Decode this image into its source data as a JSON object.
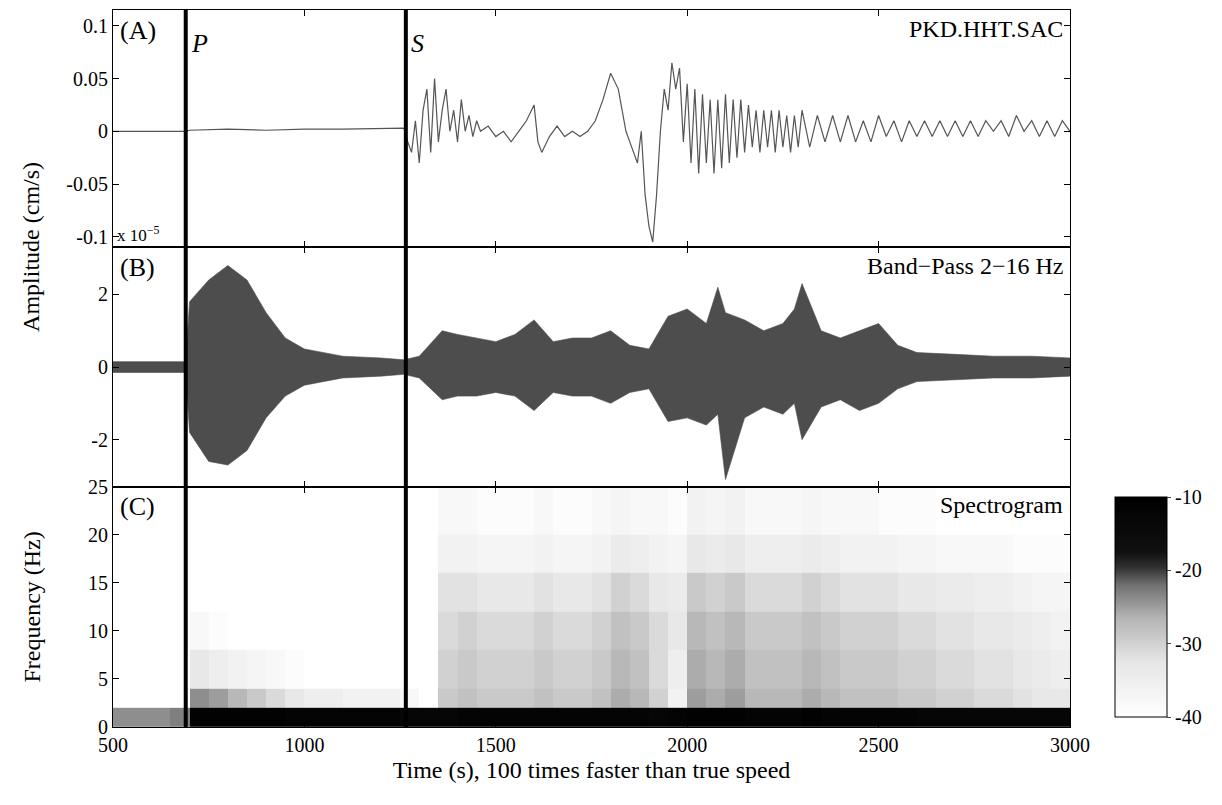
{
  "chart_data": [
    {
      "type": "line",
      "panel": "(A)",
      "title": "PKD.HHT.SAC",
      "ylabel": "Amplitude (cm/s)",
      "tick_labels": "y",
      "grid": false,
      "color": "#555555",
      "xlim": [
        500,
        3000
      ],
      "xticks": [
        500,
        1000,
        1500,
        2000,
        2500,
        3000
      ],
      "ylim": [
        -0.11,
        0.115
      ],
      "yticks": [
        -0.1,
        -0.05,
        0,
        0.05,
        0.1
      ],
      "picks": [
        {
          "label": "P",
          "time": 690
        },
        {
          "label": "S",
          "time": 1265
        }
      ],
      "x": [
        500,
        690,
        700,
        800,
        900,
        1000,
        1100,
        1200,
        1260,
        1270,
        1280,
        1290,
        1300,
        1310,
        1320,
        1330,
        1340,
        1350,
        1360,
        1370,
        1380,
        1390,
        1400,
        1410,
        1420,
        1430,
        1440,
        1450,
        1460,
        1480,
        1500,
        1520,
        1540,
        1560,
        1580,
        1600,
        1610,
        1620,
        1640,
        1660,
        1680,
        1700,
        1720,
        1740,
        1760,
        1780,
        1800,
        1820,
        1840,
        1850,
        1870,
        1880,
        1890,
        1900,
        1910,
        1920,
        1930,
        1940,
        1950,
        1960,
        1970,
        1980,
        1990,
        2000,
        2010,
        2020,
        2030,
        2040,
        2050,
        2060,
        2070,
        2080,
        2090,
        2100,
        2110,
        2120,
        2130,
        2140,
        2150,
        2160,
        2170,
        2180,
        2190,
        2200,
        2210,
        2220,
        2230,
        2240,
        2250,
        2260,
        2270,
        2280,
        2290,
        2300,
        2320,
        2340,
        2360,
        2380,
        2400,
        2420,
        2440,
        2460,
        2480,
        2500,
        2520,
        2540,
        2560,
        2580,
        2600,
        2620,
        2640,
        2660,
        2680,
        2700,
        2720,
        2740,
        2760,
        2780,
        2800,
        2820,
        2840,
        2860,
        2880,
        2900,
        2920,
        2940,
        2960,
        2980,
        3000
      ],
      "values": [
        0,
        0,
        0.001,
        0.002,
        0.001,
        0.002,
        0.002,
        0.003,
        0.003,
        -0.01,
        -0.02,
        0.01,
        -0.03,
        0.02,
        0.04,
        -0.02,
        0.05,
        -0.01,
        0.02,
        0.04,
        0.0,
        0.02,
        -0.01,
        0.03,
        0.0,
        0.015,
        -0.005,
        0.01,
        0.0,
        0.005,
        -0.005,
        0.0,
        -0.01,
        0.0,
        0.01,
        0.025,
        -0.01,
        -0.02,
        -0.005,
        0.005,
        -0.005,
        0.0,
        -0.005,
        0.0,
        0.01,
        0.03,
        0.055,
        0.04,
        0.0,
        -0.01,
        -0.03,
        0.0,
        -0.06,
        -0.09,
        -0.105,
        -0.06,
        0.0,
        0.04,
        0.02,
        0.065,
        0.04,
        0.06,
        -0.01,
        0.045,
        -0.03,
        0.04,
        -0.04,
        0.035,
        -0.03,
        0.03,
        -0.04,
        0.03,
        -0.035,
        0.035,
        -0.03,
        0.03,
        -0.025,
        0.03,
        -0.02,
        0.025,
        -0.015,
        0.02,
        -0.02,
        0.02,
        -0.015,
        0.02,
        -0.02,
        0.02,
        -0.015,
        0.015,
        -0.02,
        0.015,
        -0.015,
        0.02,
        -0.015,
        0.015,
        -0.01,
        0.015,
        -0.01,
        0.015,
        -0.01,
        0.01,
        -0.01,
        0.015,
        -0.005,
        0.01,
        -0.01,
        0.01,
        -0.005,
        0.01,
        -0.005,
        0.01,
        -0.005,
        0.01,
        -0.005,
        0.01,
        -0.005,
        0.01,
        0.0,
        0.01,
        -0.005,
        0.015,
        0.0,
        0.01,
        -0.005,
        0.01,
        -0.005,
        0.01,
        0.0
      ]
    },
    {
      "type": "area",
      "panel": "(B)",
      "title": "Band−Pass 2−16 Hz",
      "scale_text": "x 10",
      "scale_exponent": "−5",
      "tick_labels": "y",
      "grid": false,
      "color": "#4d4d4d",
      "xlim": [
        500,
        3000
      ],
      "xticks": [
        500,
        1000,
        1500,
        2000,
        2500,
        3000
      ],
      "ylim": [
        -3.3,
        3.3
      ],
      "yticks": [
        -2,
        0,
        2
      ],
      "envelope": {
        "x": [
          500,
          690,
          700,
          750,
          800,
          850,
          900,
          950,
          1000,
          1100,
          1200,
          1260,
          1300,
          1360,
          1400,
          1450,
          1500,
          1550,
          1600,
          1650,
          1700,
          1750,
          1800,
          1850,
          1900,
          1950,
          2000,
          2050,
          2080,
          2100,
          2150,
          2200,
          2250,
          2280,
          2300,
          2350,
          2400,
          2450,
          2500,
          2550,
          2600,
          2700,
          2800,
          2900,
          3000
        ],
        "upper": [
          0.15,
          0.15,
          1.8,
          2.4,
          2.8,
          2.4,
          1.5,
          0.8,
          0.5,
          0.3,
          0.25,
          0.2,
          0.3,
          1.0,
          0.9,
          0.8,
          0.7,
          0.9,
          1.3,
          0.7,
          0.8,
          0.8,
          1.0,
          0.6,
          0.5,
          1.4,
          1.6,
          1.2,
          2.2,
          1.5,
          1.3,
          1.0,
          1.2,
          1.6,
          2.3,
          1.0,
          0.8,
          1.0,
          1.2,
          0.6,
          0.4,
          0.35,
          0.3,
          0.3,
          0.25
        ],
        "lower": [
          -0.15,
          -0.15,
          -1.8,
          -2.6,
          -2.7,
          -2.3,
          -1.4,
          -0.8,
          -0.5,
          -0.3,
          -0.25,
          -0.2,
          -0.3,
          -0.9,
          -0.8,
          -0.8,
          -0.7,
          -0.8,
          -1.2,
          -0.7,
          -0.8,
          -0.8,
          -1.0,
          -0.7,
          -0.6,
          -1.5,
          -1.4,
          -1.6,
          -1.3,
          -3.1,
          -1.4,
          -1.1,
          -1.3,
          -1.0,
          -2.0,
          -1.1,
          -0.9,
          -1.2,
          -1.0,
          -0.6,
          -0.4,
          -0.35,
          -0.3,
          -0.3,
          -0.25
        ]
      }
    },
    {
      "type": "heatmap",
      "panel": "(C)",
      "title": "Spectrogram",
      "xlabel": "Time (s), 100 times faster than true speed",
      "ylabel": "Frequency (Hz)",
      "grid": false,
      "xlim": [
        500,
        3000
      ],
      "xticks": [
        500,
        1000,
        1500,
        2000,
        2500,
        3000
      ],
      "ylim": [
        0,
        25
      ],
      "yticks": [
        0,
        5,
        10,
        15,
        20,
        25
      ],
      "colorbar": {
        "zlim": [
          -40,
          -10
        ],
        "ticks": [
          -40,
          -30,
          -20,
          -10
        ]
      },
      "x": [
        500,
        550,
        600,
        650,
        700,
        750,
        800,
        850,
        900,
        950,
        1000,
        1050,
        1100,
        1150,
        1200,
        1250,
        1300,
        1350,
        1400,
        1450,
        1500,
        1550,
        1600,
        1650,
        1700,
        1750,
        1800,
        1850,
        1900,
        1950,
        2000,
        2050,
        2100,
        2150,
        2200,
        2250,
        2300,
        2350,
        2400,
        2450,
        2500,
        2550,
        2600,
        2650,
        2700,
        2750,
        2800,
        2850,
        2900,
        2950,
        3000
      ],
      "y": [
        0,
        2,
        4,
        8,
        12,
        16,
        20,
        25
      ],
      "z": [
        [
          -24,
          -24,
          -24,
          -23,
          -11,
          -11,
          -11,
          -11,
          -11,
          -12,
          -12,
          -12,
          -12,
          -12,
          -12,
          -13,
          -13,
          -13,
          -12,
          -12,
          -12,
          -12,
          -12,
          -12,
          -12,
          -12,
          -12,
          -12,
          -13,
          -12,
          -11,
          -11,
          -11,
          -12,
          -12,
          -12,
          -11,
          -12,
          -12,
          -12,
          -12,
          -12,
          -13,
          -13,
          -13,
          -13,
          -13,
          -13,
          -13,
          -13
        ],
        [
          -40,
          -40,
          -40,
          -40,
          -24,
          -25,
          -27,
          -29,
          -31,
          -33,
          -35,
          -35,
          -36,
          -36,
          -36,
          -38,
          -40,
          -29,
          -28,
          -29,
          -29,
          -29,
          -28,
          -29,
          -29,
          -28,
          -26,
          -27,
          -30,
          -36,
          -25,
          -26,
          -25,
          -27,
          -27,
          -27,
          -26,
          -27,
          -28,
          -28,
          -28,
          -29,
          -29,
          -30,
          -30,
          -31,
          -31,
          -32,
          -33,
          -33
        ],
        [
          -40,
          -40,
          -40,
          -40,
          -33,
          -35,
          -36,
          -37,
          -38,
          -39,
          -40,
          -40,
          -40,
          -40,
          -40,
          -40,
          -40,
          -30,
          -29,
          -30,
          -30,
          -30,
          -29,
          -30,
          -30,
          -29,
          -27,
          -28,
          -31,
          -35,
          -26,
          -27,
          -26,
          -28,
          -28,
          -28,
          -27,
          -28,
          -29,
          -29,
          -29,
          -30,
          -30,
          -31,
          -31,
          -32,
          -32,
          -33,
          -34,
          -35
        ],
        [
          -40,
          -40,
          -40,
          -40,
          -38,
          -39,
          -40,
          -40,
          -40,
          -40,
          -40,
          -40,
          -40,
          -40,
          -40,
          -40,
          -40,
          -31,
          -30,
          -31,
          -31,
          -31,
          -30,
          -31,
          -31,
          -30,
          -28,
          -29,
          -31,
          -33,
          -27,
          -28,
          -27,
          -29,
          -29,
          -29,
          -28,
          -29,
          -30,
          -30,
          -30,
          -31,
          -31,
          -32,
          -32,
          -33,
          -33,
          -34,
          -35,
          -36
        ],
        [
          -40,
          -40,
          -40,
          -40,
          -40,
          -40,
          -40,
          -40,
          -40,
          -40,
          -40,
          -40,
          -40,
          -40,
          -40,
          -40,
          -40,
          -32,
          -32,
          -33,
          -33,
          -33,
          -32,
          -33,
          -33,
          -32,
          -30,
          -31,
          -33,
          -34,
          -29,
          -30,
          -29,
          -31,
          -31,
          -31,
          -30,
          -31,
          -32,
          -32,
          -32,
          -33,
          -33,
          -34,
          -34,
          -35,
          -35,
          -36,
          -37,
          -37
        ],
        [
          -40,
          -40,
          -40,
          -40,
          -40,
          -40,
          -40,
          -40,
          -40,
          -40,
          -40,
          -40,
          -40,
          -40,
          -40,
          -40,
          -40,
          -36,
          -36,
          -37,
          -37,
          -37,
          -36,
          -37,
          -37,
          -36,
          -34,
          -35,
          -36,
          -37,
          -33,
          -34,
          -33,
          -35,
          -35,
          -35,
          -34,
          -35,
          -36,
          -36,
          -36,
          -37,
          -37,
          -38,
          -38,
          -38,
          -38,
          -39,
          -39,
          -39
        ],
        [
          -40,
          -40,
          -40,
          -40,
          -40,
          -40,
          -40,
          -40,
          -40,
          -40,
          -40,
          -40,
          -40,
          -40,
          -40,
          -40,
          -40,
          -38,
          -38,
          -39,
          -39,
          -39,
          -38,
          -39,
          -39,
          -38,
          -37,
          -38,
          -38,
          -39,
          -36,
          -37,
          -36,
          -38,
          -38,
          -38,
          -37,
          -38,
          -38,
          -38,
          -39,
          -39,
          -39,
          -40,
          -40,
          -40,
          -40,
          -40,
          -40,
          -40
        ]
      ]
    }
  ]
}
